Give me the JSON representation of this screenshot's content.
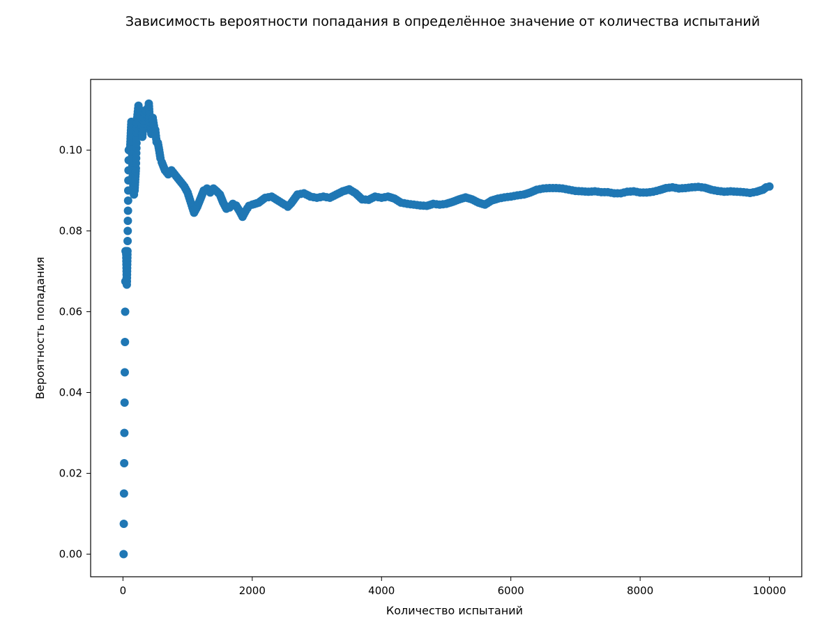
{
  "chart_data": {
    "type": "scatter",
    "title": "Зависимость вероятности попадания в определённое значение от количества испытаний",
    "xlabel": "Количество испытаний",
    "ylabel": "Вероятность попадания",
    "xlim": [
      -500,
      10500
    ],
    "ylim": [
      -0.0056,
      0.1175
    ],
    "xticks": [
      0,
      2000,
      4000,
      6000,
      8000,
      10000
    ],
    "xtick_labels": [
      "0",
      "2000",
      "4000",
      "6000",
      "8000",
      "10000"
    ],
    "yticks": [
      0.0,
      0.02,
      0.04,
      0.06,
      0.08,
      0.1
    ],
    "ytick_labels": [
      "0.00",
      "0.02",
      "0.04",
      "0.06",
      "0.08",
      "0.10"
    ],
    "grid": false,
    "color": "#1f77b4",
    "series": [
      {
        "points": [
          [
            10,
            0.0
          ],
          [
            40,
            0.075
          ],
          [
            50,
            0.075
          ],
          [
            60,
            0.0667
          ],
          [
            70,
            0.075
          ],
          [
            90,
            0.1
          ],
          [
            100,
            0.1
          ],
          [
            110,
            0.1
          ],
          [
            130,
            0.107
          ],
          [
            150,
            0.0935
          ],
          [
            170,
            0.089
          ],
          [
            180,
            0.09
          ],
          [
            200,
            0.0955
          ],
          [
            220,
            0.108
          ],
          [
            240,
            0.111
          ],
          [
            260,
            0.11
          ],
          [
            280,
            0.107
          ],
          [
            300,
            0.1033
          ],
          [
            320,
            0.108
          ],
          [
            340,
            0.109
          ],
          [
            360,
            0.11
          ],
          [
            380,
            0.108
          ],
          [
            400,
            0.1115
          ],
          [
            420,
            0.106
          ],
          [
            440,
            0.104
          ],
          [
            460,
            0.108
          ],
          [
            480,
            0.106
          ],
          [
            500,
            0.105
          ],
          [
            520,
            0.102
          ],
          [
            540,
            0.1018
          ],
          [
            560,
            0.1
          ],
          [
            580,
            0.098
          ],
          [
            600,
            0.097
          ],
          [
            650,
            0.095
          ],
          [
            700,
            0.094
          ],
          [
            750,
            0.095
          ],
          [
            800,
            0.094
          ],
          [
            850,
            0.093
          ],
          [
            900,
            0.092
          ],
          [
            950,
            0.091
          ],
          [
            1000,
            0.0895
          ],
          [
            1050,
            0.087
          ],
          [
            1100,
            0.0845
          ],
          [
            1150,
            0.086
          ],
          [
            1200,
            0.088
          ],
          [
            1250,
            0.09
          ],
          [
            1300,
            0.0905
          ],
          [
            1350,
            0.0895
          ],
          [
            1400,
            0.0905
          ],
          [
            1450,
            0.0898
          ],
          [
            1500,
            0.089
          ],
          [
            1550,
            0.087
          ],
          [
            1600,
            0.0855
          ],
          [
            1650,
            0.0858
          ],
          [
            1700,
            0.0867
          ],
          [
            1750,
            0.0863
          ],
          [
            1800,
            0.085
          ],
          [
            1850,
            0.0835
          ],
          [
            1900,
            0.085
          ],
          [
            1950,
            0.0862
          ],
          [
            2000,
            0.0865
          ],
          [
            2100,
            0.087
          ],
          [
            2200,
            0.0882
          ],
          [
            2300,
            0.0885
          ],
          [
            2400,
            0.0875
          ],
          [
            2500,
            0.0865
          ],
          [
            2550,
            0.086
          ],
          [
            2600,
            0.0868
          ],
          [
            2700,
            0.089
          ],
          [
            2800,
            0.0893
          ],
          [
            2900,
            0.0885
          ],
          [
            3000,
            0.0882
          ],
          [
            3100,
            0.0885
          ],
          [
            3200,
            0.0882
          ],
          [
            3300,
            0.089
          ],
          [
            3400,
            0.0898
          ],
          [
            3500,
            0.0903
          ],
          [
            3600,
            0.0893
          ],
          [
            3700,
            0.0878
          ],
          [
            3800,
            0.0877
          ],
          [
            3900,
            0.0885
          ],
          [
            4000,
            0.0882
          ],
          [
            4100,
            0.0885
          ],
          [
            4200,
            0.088
          ],
          [
            4300,
            0.087
          ],
          [
            4400,
            0.0867
          ],
          [
            4500,
            0.0865
          ],
          [
            4600,
            0.0863
          ],
          [
            4700,
            0.0862
          ],
          [
            4800,
            0.0867
          ],
          [
            4900,
            0.0865
          ],
          [
            5000,
            0.0867
          ],
          [
            5100,
            0.0872
          ],
          [
            5200,
            0.0878
          ],
          [
            5300,
            0.0883
          ],
          [
            5400,
            0.0878
          ],
          [
            5500,
            0.087
          ],
          [
            5600,
            0.0865
          ],
          [
            5700,
            0.0875
          ],
          [
            5800,
            0.088
          ],
          [
            5900,
            0.0883
          ],
          [
            6000,
            0.0885
          ],
          [
            6100,
            0.0888
          ],
          [
            6200,
            0.089
          ],
          [
            6300,
            0.0895
          ],
          [
            6400,
            0.0902
          ],
          [
            6500,
            0.0905
          ],
          [
            6600,
            0.0906
          ],
          [
            6700,
            0.0906
          ],
          [
            6800,
            0.0905
          ],
          [
            6900,
            0.0902
          ],
          [
            7000,
            0.0899
          ],
          [
            7100,
            0.0898
          ],
          [
            7200,
            0.0897
          ],
          [
            7300,
            0.0898
          ],
          [
            7400,
            0.0896
          ],
          [
            7500,
            0.0896
          ],
          [
            7600,
            0.0893
          ],
          [
            7700,
            0.0893
          ],
          [
            7800,
            0.0897
          ],
          [
            7900,
            0.0898
          ],
          [
            8000,
            0.0895
          ],
          [
            8100,
            0.0895
          ],
          [
            8200,
            0.0897
          ],
          [
            8300,
            0.0901
          ],
          [
            8400,
            0.0906
          ],
          [
            8500,
            0.0908
          ],
          [
            8600,
            0.0905
          ],
          [
            8700,
            0.0906
          ],
          [
            8800,
            0.0908
          ],
          [
            8900,
            0.0909
          ],
          [
            9000,
            0.0907
          ],
          [
            9100,
            0.0902
          ],
          [
            9200,
            0.0899
          ],
          [
            9300,
            0.0897
          ],
          [
            9400,
            0.0898
          ],
          [
            9500,
            0.0897
          ],
          [
            9600,
            0.0896
          ],
          [
            9700,
            0.0894
          ],
          [
            9800,
            0.0897
          ],
          [
            9900,
            0.0902
          ],
          [
            9950,
            0.0908
          ],
          [
            10000,
            0.091
          ]
        ]
      }
    ]
  }
}
